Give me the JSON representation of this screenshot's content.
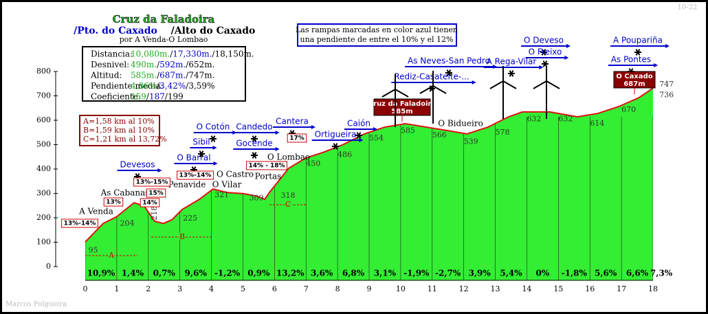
{
  "chart_data": {
    "type": "area",
    "title": "Cruz da Faladoira",
    "subtitle_parts": [
      "/Pto. do Caxado",
      "/Alto do Caxado"
    ],
    "route": "por A Venda-O Lombao",
    "info": {
      "separator": "/",
      "rows": [
        {
          "label": "Distancia:",
          "values": [
            "10,080m.",
            "17,330m.",
            "18,150m."
          ]
        },
        {
          "label": "Desnivel:",
          "values": [
            "490m.",
            "592m.",
            "652m."
          ]
        },
        {
          "label": "Altitud:",
          "values": [
            "585m.",
            "687m.",
            "747m."
          ]
        },
        {
          "label": "Pendiente media:",
          "values": [
            "4,86%",
            "3,42%",
            "3,59%"
          ]
        },
        {
          "label": "Coeficiente:",
          "values": [
            "159",
            "187",
            "199"
          ]
        }
      ]
    },
    "note": [
      "Las rampas marcadas en color azul tienen",
      "una pendiente de entre el 10% y el 12%"
    ],
    "ramps": [
      "A=1,58 km al 10%",
      "B=1,59 km al 10%",
      "C=1,21 km al 13,72%"
    ],
    "ramp_letters": [
      "A",
      "B",
      "C"
    ],
    "xlim": [
      0,
      18
    ],
    "xticks": [
      0,
      1,
      2,
      3,
      4,
      5,
      6,
      7,
      8,
      9,
      10,
      11,
      12,
      13,
      14,
      15,
      16,
      17,
      18
    ],
    "ylim": [
      0,
      800
    ],
    "yticks": [
      0,
      100,
      200,
      300,
      400,
      500,
      600,
      700,
      800
    ],
    "area_color": "#33ee33",
    "line_color": "#dd1111",
    "profile": {
      "x": [
        0,
        0.57,
        1.0,
        1.55,
        1.87,
        2.2,
        2.48,
        2.75,
        3.07,
        3.62,
        4.05,
        4.49,
        5.03,
        5.4,
        5.69,
        5.84,
        6.45,
        6.99,
        7.54,
        8.19,
        8.85,
        9.5,
        10.15,
        10.81,
        11.46,
        12.11,
        12.77,
        13.42,
        13.86,
        14.73,
        15.6,
        16.25,
        16.91,
        17.56,
        18.0
      ],
      "values": [
        101,
        177,
        205,
        262,
        248,
        186,
        177,
        192,
        234,
        276,
        318,
        304,
        299,
        290,
        276,
        304,
        403,
        445,
        468,
        501,
        544,
        572,
        586,
        572,
        558,
        544,
        572,
        614,
        634,
        634,
        614,
        628,
        656,
        693,
        732
      ]
    },
    "elevation_labels": {
      "x": [
        0.1,
        1.1,
        2.2,
        3.1,
        4.1,
        5.2,
        6.2,
        7.0,
        8.0,
        9.0,
        10.0,
        11.0,
        12.0,
        13.0,
        14.0,
        15.0,
        16.0,
        17.0,
        18.2,
        18.2
      ],
      "values": [
        95,
        204,
        218,
        225,
        321,
        309,
        318,
        450,
        486,
        554,
        585,
        566,
        539,
        578,
        632,
        632,
        614,
        670,
        747,
        736
      ]
    },
    "segments": {
      "values": [
        10.9,
        1.4,
        0.7,
        9.6,
        -1.2,
        0.9,
        13.2,
        3.6,
        6.8,
        3.1,
        -1.9,
        -2.7,
        3.9,
        5.4,
        0,
        -1.8,
        5.6,
        6.6,
        7.3
      ],
      "value_labels": [
        "10,9%",
        "1,4%",
        "0,7%",
        "9,6%",
        "-1,2%",
        "0,9%",
        "13,2%",
        "3,6%",
        "6,8%",
        "3,1%",
        "-1,9%",
        "-2,7%",
        "3,9%",
        "5,4%",
        "0%",
        "-1,8%",
        "5,6%",
        "6,6%",
        "7,3%"
      ]
    },
    "blue_places": [
      "Devesos",
      "O Barral",
      "Sibil",
      "O Cotón",
      "Candedo",
      "Gocende",
      "Cantera",
      "Ortigueira",
      "Caión",
      "Rediz-Casateite-...",
      "As Neves-San Pedro",
      "A Rega-Vilar",
      "O Deveso",
      "O Freixo",
      "As Pontes",
      "A Poupariña"
    ],
    "black_places": [
      "A Venda",
      "As Cabanas",
      "Penavide",
      "O Vilar",
      "O Castro",
      "Portas",
      "O Lombao",
      "O Bidueiro"
    ],
    "gradient_tags": [
      "13%-14%",
      "13%",
      "15%",
      "14%",
      "13%-15%",
      "13%-14%",
      "14% - 18%",
      "17%"
    ],
    "summits": [
      {
        "name": "Cruz da Faladoira",
        "altitude": "585m"
      },
      {
        "name": "O Caxado",
        "altitude": "687m"
      }
    ],
    "watermark": "10-22",
    "author": "Marcos Folgueira"
  }
}
